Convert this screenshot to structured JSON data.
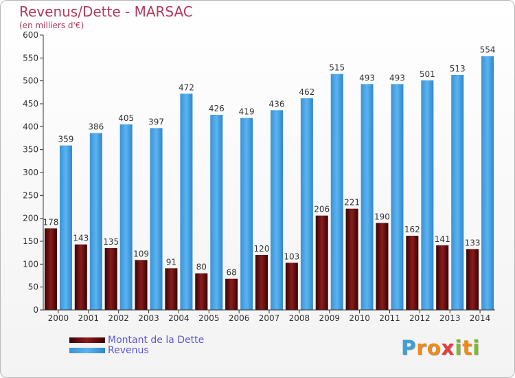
{
  "chart_data": {
    "type": "bar",
    "title": "Revenus/Dette - MARSAC",
    "subtitle": "(en milliers d'€)",
    "categories": [
      "2000",
      "2001",
      "2002",
      "2003",
      "2004",
      "2005",
      "2006",
      "2007",
      "2008",
      "2009",
      "2010",
      "2011",
      "2012",
      "2013",
      "2014"
    ],
    "series": [
      {
        "name": "Montant de la Dette",
        "color": "#6b0d0d",
        "values": [
          178,
          143,
          135,
          109,
          91,
          80,
          68,
          120,
          103,
          206,
          221,
          190,
          162,
          141,
          133
        ]
      },
      {
        "name": "Revenus",
        "color": "#4aa8e8",
        "values": [
          359,
          386,
          405,
          397,
          472,
          426,
          419,
          436,
          462,
          515,
          493,
          493,
          501,
          513,
          554
        ]
      }
    ],
    "yticks": [
      0,
      50,
      100,
      150,
      200,
      250,
      300,
      350,
      400,
      450,
      500,
      550,
      600
    ],
    "ylim": [
      0,
      600
    ],
    "grid": false,
    "legend_position": "bottom-left"
  },
  "logo": {
    "letters": [
      "P",
      "r",
      "o",
      "x",
      "i",
      "t",
      "i"
    ],
    "colors": [
      "#3aa0dc",
      "#f08a1a",
      "#f08a1a",
      "#e63c3c",
      "#7dbb2e",
      "#f08a1a",
      "#7dbb2e"
    ]
  }
}
